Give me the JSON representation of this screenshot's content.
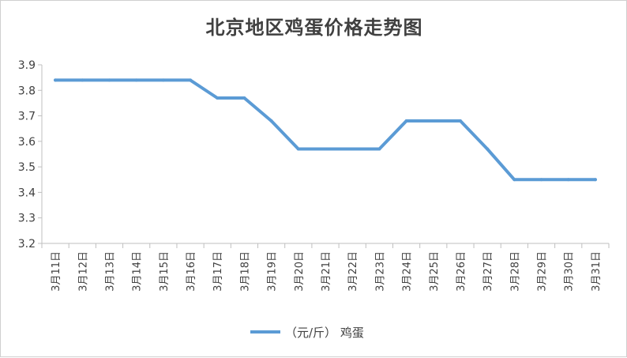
{
  "chart_data": {
    "type": "line",
    "title": "北京地区鸡蛋价格走势图",
    "categories": [
      "3月11日",
      "3月12日",
      "3月13日",
      "3月14日",
      "3月15日",
      "3月16日",
      "3月17日",
      "3月18日",
      "3月19日",
      "3月20日",
      "3月21日",
      "3月22日",
      "3月23日",
      "3月24日",
      "3月25日",
      "3月26日",
      "3月27日",
      "3月28日",
      "3月29日",
      "3月30日",
      "3月31日"
    ],
    "series": [
      {
        "name": "（元/斤） 鸡蛋",
        "color": "#5b9bd5",
        "values": [
          3.84,
          3.84,
          3.84,
          3.84,
          3.84,
          3.84,
          3.77,
          3.77,
          3.68,
          3.57,
          3.57,
          3.57,
          3.57,
          3.68,
          3.68,
          3.68,
          3.57,
          3.45,
          3.45,
          3.45,
          3.45
        ]
      }
    ],
    "ylim": [
      3.2,
      3.9
    ],
    "yticks": [
      "3.2",
      "3.3",
      "3.4",
      "3.5",
      "3.6",
      "3.7",
      "3.8",
      "3.9"
    ],
    "grid": false,
    "legend": "bottom"
  }
}
